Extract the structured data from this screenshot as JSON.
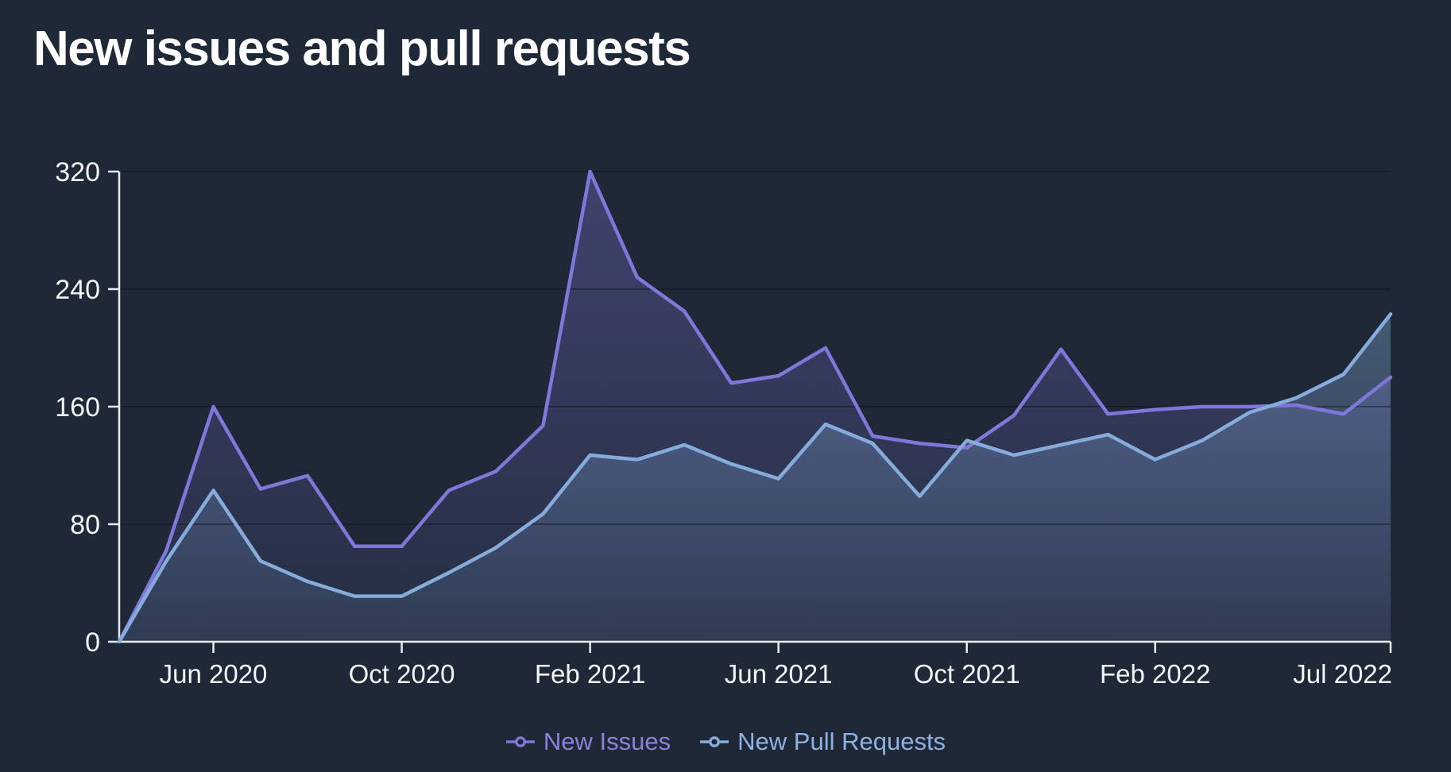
{
  "title": "New issues and pull requests",
  "colors": {
    "background": "#1e2836",
    "axis": "#e9edf2",
    "grid": "rgba(13,19,30,0.55)",
    "tick_text": "#f3f5f8",
    "title_text": "#ffffff"
  },
  "chart_data": {
    "type": "area",
    "title": "New issues and pull requests",
    "xlabel": "",
    "ylabel": "",
    "ylim": [
      0,
      320
    ],
    "yticks": [
      0,
      80,
      160,
      240,
      320
    ],
    "grid": true,
    "legend_position": "bottom",
    "x": [
      "Apr 2020",
      "May 2020",
      "Jun 2020",
      "Jul 2020",
      "Aug 2020",
      "Sep 2020",
      "Oct 2020",
      "Nov 2020",
      "Dec 2020",
      "Jan 2021",
      "Feb 2021",
      "Mar 2021",
      "Apr 2021",
      "May 2021",
      "Jun 2021",
      "Jul 2021",
      "Aug 2021",
      "Sep 2021",
      "Oct 2021",
      "Nov 2021",
      "Dec 2021",
      "Jan 2022",
      "Feb 2022",
      "Mar 2022",
      "Apr 2022",
      "May 2022",
      "Jun 2022",
      "Jul 2022"
    ],
    "xticks": [
      {
        "index": 2,
        "label": "Jun 2020"
      },
      {
        "index": 6,
        "label": "Oct 2020"
      },
      {
        "index": 10,
        "label": "Feb 2021"
      },
      {
        "index": 14,
        "label": "Jun 2021"
      },
      {
        "index": 18,
        "label": "Oct 2021"
      },
      {
        "index": 22,
        "label": "Feb 2022"
      },
      {
        "index": 27,
        "label": "Jul 2022",
        "align": "end"
      }
    ],
    "series": [
      {
        "name": "New Issues",
        "color": "#7f77d9",
        "text_color": "#8a83dd",
        "fill_top": "rgba(127,119,217,0.34)",
        "fill_bottom": "rgba(127,119,217,0.08)",
        "values": [
          0,
          62,
          160,
          104,
          113,
          65,
          65,
          103,
          116,
          147,
          320,
          248,
          225,
          176,
          181,
          200,
          140,
          135,
          132,
          154,
          199,
          155,
          158,
          160,
          160,
          161,
          155,
          180
        ]
      },
      {
        "name": "New Pull Requests",
        "color": "#86acdc",
        "text_color": "#8fb2e2",
        "fill_top": "rgba(134,172,220,0.50)",
        "fill_bottom": "rgba(134,172,220,0.10)",
        "values": [
          0,
          55,
          103,
          55,
          41,
          31,
          31,
          47,
          64,
          87,
          127,
          124,
          134,
          121,
          111,
          148,
          135,
          99,
          137,
          127,
          134,
          141,
          124,
          137,
          156,
          166,
          182,
          223
        ]
      }
    ]
  }
}
